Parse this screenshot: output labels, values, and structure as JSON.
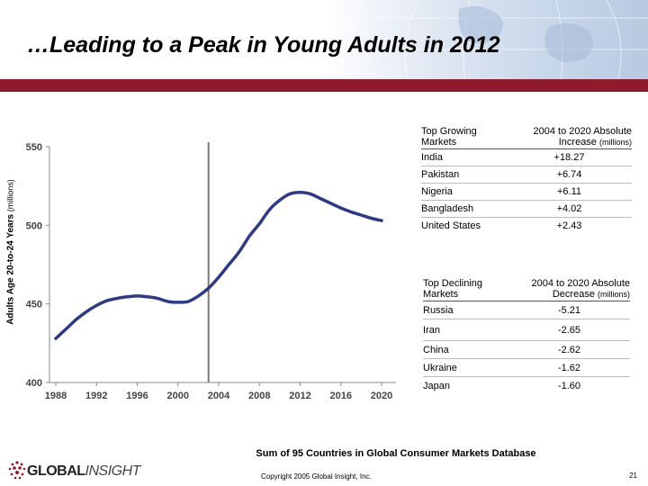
{
  "slide": {
    "title": "…Leading to a Peak in Young Adults in 2012",
    "footer_note": "Sum of 95 Countries in Global Consumer Markets Database",
    "copyright": "Copyright 2005 Global Insight, Inc.",
    "page_number": "21",
    "logo_part1": "GLOBAL",
    "logo_part2": "INSIGHT",
    "accent_color": "#8e1b2c",
    "line_color": "#2e3a82"
  },
  "chart_data": {
    "type": "line",
    "title": "",
    "xlabel": "",
    "ylabel": "Adults Age 20-to-24 Years",
    "ylabel_unit": "(millions)",
    "xlim": [
      1988,
      2020
    ],
    "ylim": [
      400,
      550
    ],
    "x_ticks": [
      "1988",
      "1992",
      "1996",
      "2000",
      "2004",
      "2008",
      "2012",
      "2016",
      "2020"
    ],
    "y_ticks": [
      "550",
      "500",
      "450",
      "400"
    ],
    "vertical_marker_year": 2003,
    "series": [
      {
        "name": "Adults Age 20-to-24 Years",
        "x": [
          1988,
          1989,
          1990,
          1991,
          1992,
          1993,
          1994,
          1995,
          1996,
          1997,
          1998,
          1999,
          2000,
          2001,
          2002,
          2003,
          2004,
          2005,
          2006,
          2007,
          2008,
          2009,
          2010,
          2011,
          2012,
          2013,
          2014,
          2015,
          2016,
          2017,
          2018,
          2019,
          2020
        ],
        "values": [
          428,
          434,
          440,
          445,
          449,
          452,
          453.5,
          454.5,
          455,
          454.5,
          453.5,
          451.5,
          451,
          451.5,
          455,
          460,
          467,
          475,
          483,
          493,
          501,
          510,
          516,
          520,
          521,
          520,
          517,
          514,
          511,
          508.5,
          506.5,
          504.5,
          503
        ]
      }
    ]
  },
  "growing_table": {
    "col1_header": "Top Growing Markets",
    "col2_header": "2004 to 2020 Absolute Increase",
    "col2_unit": "(millions)",
    "rows": [
      {
        "country": "India",
        "value": "+18.27"
      },
      {
        "country": "Pakistan",
        "value": "+6.74"
      },
      {
        "country": "Nigeria",
        "value": "+6.11"
      },
      {
        "country": "Bangladesh",
        "value": "+4.02"
      },
      {
        "country": "United States",
        "value": "+2.43"
      }
    ]
  },
  "declining_table": {
    "col1_header": "Top Declining Markets",
    "col2_header": "2004 to 2020 Absolute Decrease",
    "col2_unit": "(millions)",
    "rows": [
      {
        "country": "Russia",
        "value": "-5.21"
      },
      {
        "country": "Iran",
        "value": "-2.65"
      },
      {
        "country": "China",
        "value": "-2.62"
      },
      {
        "country": "Ukraine",
        "value": "-1.62"
      },
      {
        "country": "Japan",
        "value": "-1.60"
      }
    ]
  }
}
